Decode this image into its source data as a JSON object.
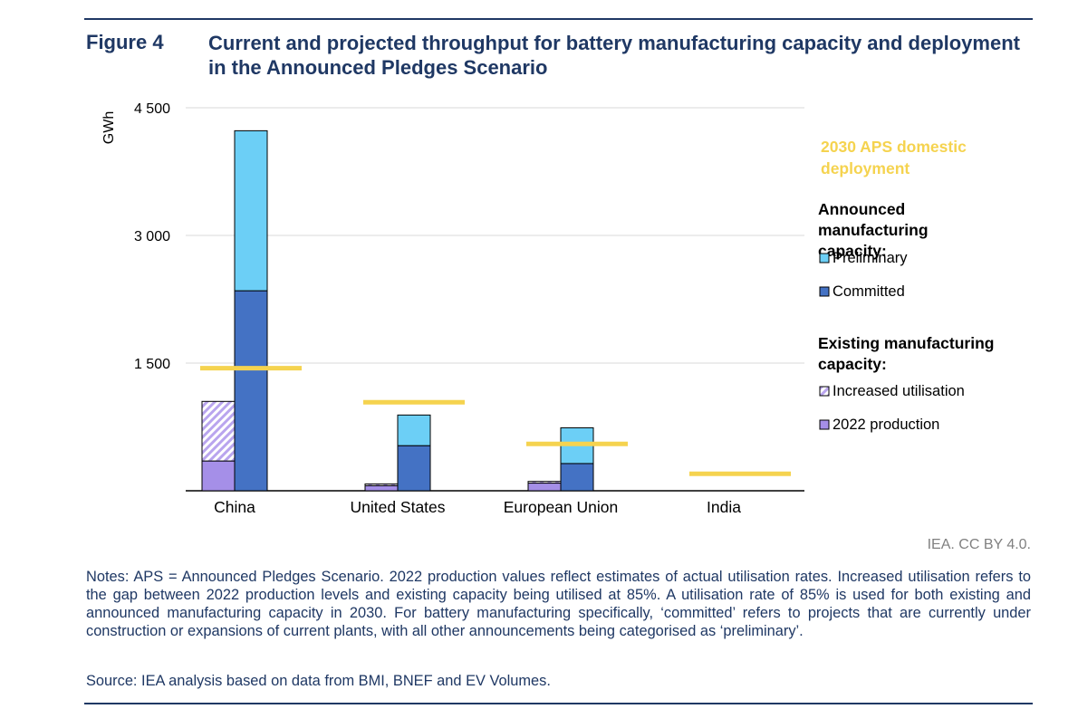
{
  "figure": {
    "label": "Figure 4",
    "title": "Current and projected throughput for battery manufacturing capacity and deployment in the Announced Pledges Scenario",
    "credit": "IEA. CC BY 4.0.",
    "notes": "Notes: APS = Announced Pledges Scenario. 2022 production values reflect estimates of actual utilisation rates. Increased utilisation refers to the gap between 2022 production levels and existing capacity being utilised at 85%. A utilisation rate of 85% is used for both existing and announced manufacturing capacity in 2030. For battery manufacturing specifically, ‘committed’ refers to projects that are currently under construction or expansions of current plants, with all other announcements being categorised as ‘preliminary’.",
    "source": "Source: IEA analysis based on data from BMI, BNEF and EV Volumes."
  },
  "chart_data": {
    "type": "bar",
    "ylabel": "GWh",
    "ylim": [
      0,
      4500
    ],
    "yticks": [
      0,
      1500,
      3000,
      4500
    ],
    "ytick_labels": [
      "",
      "1 500",
      "3 000",
      "4 500"
    ],
    "grid": true,
    "categories": [
      "China",
      "United States",
      "European Union",
      "India"
    ],
    "existing_capacity": {
      "header": "Existing manufacturing capacity:",
      "series": [
        {
          "name": "2022 production",
          "color": "#a58fe8",
          "values": [
            350,
            60,
            90,
            0
          ]
        },
        {
          "name": "Increased utilisation",
          "color": "#c9b8f2",
          "pattern": "hatched",
          "values": [
            700,
            20,
            20,
            0
          ]
        }
      ]
    },
    "announced_capacity": {
      "header": "Announced manufacturing capacity:",
      "series": [
        {
          "name": "Committed",
          "color": "#4472c4",
          "values": [
            2350,
            530,
            320,
            0
          ]
        },
        {
          "name": "Preliminary",
          "color": "#6ccff6",
          "values": [
            1880,
            360,
            420,
            0
          ]
        }
      ]
    },
    "deployment": {
      "name": "2030 APS domestic deployment",
      "color": "#f5d34f",
      "values": [
        1440,
        1040,
        550,
        200
      ]
    },
    "legend_position": "right"
  }
}
